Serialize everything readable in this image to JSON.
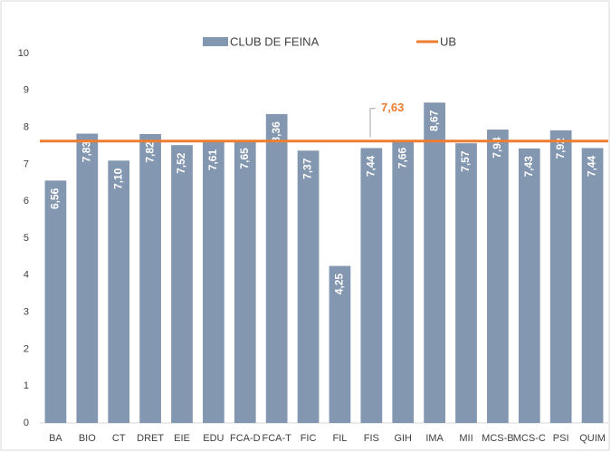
{
  "chart_data": {
    "type": "bar",
    "categories": [
      "BA",
      "BIO",
      "CT",
      "DRET",
      "EIE",
      "EDU",
      "FCA-D",
      "FCA-T",
      "FIC",
      "FIL",
      "FIS",
      "GIH",
      "IMA",
      "MII",
      "MCS-B",
      "MCS-C",
      "PSI",
      "QUIM"
    ],
    "series": [
      {
        "name": "CLUB DE FEINA",
        "color": "#8497b0",
        "values": [
          6.56,
          7.83,
          7.1,
          7.82,
          7.52,
          7.61,
          7.65,
          8.36,
          7.37,
          4.25,
          7.44,
          7.66,
          8.67,
          7.57,
          7.94,
          7.43,
          7.92,
          7.44
        ],
        "value_labels": [
          "6,56",
          "7,83",
          "7,10",
          "7,82",
          "7,52",
          "7,61",
          "7,65",
          "8,36",
          "7,37",
          "4,25",
          "7,44",
          "7,66",
          "8,67",
          "7,57",
          "7,94",
          "7,43",
          "7,92",
          "7,44"
        ]
      }
    ],
    "reference_line": {
      "name": "UB",
      "value": 7.63,
      "value_label": "7,63",
      "color": "#ed7d31"
    },
    "ylim": [
      0,
      10
    ],
    "yticks": [
      0,
      1,
      2,
      3,
      4,
      5,
      6,
      7,
      8,
      9,
      10
    ],
    "grid": false,
    "legend": "top"
  }
}
